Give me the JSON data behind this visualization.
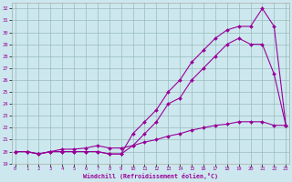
{
  "xlabel": "Windchill (Refroidissement éolien,°C)",
  "x_values": [
    0,
    1,
    2,
    3,
    4,
    5,
    6,
    7,
    8,
    9,
    10,
    11,
    12,
    13,
    14,
    15,
    16,
    17,
    18,
    19,
    20,
    21,
    22,
    23
  ],
  "line1": [
    20,
    20,
    19.8,
    20,
    20,
    20,
    20,
    20,
    19.8,
    19.8,
    21.5,
    22.5,
    23.5,
    25.0,
    26.0,
    27.5,
    28.5,
    29.5,
    30.2,
    30.5,
    30.5,
    32.0,
    30.5,
    22.2
  ],
  "line2": [
    20,
    20,
    19.8,
    20,
    20,
    20,
    20,
    20,
    19.8,
    19.8,
    20.5,
    21.5,
    22.5,
    24.0,
    24.5,
    26.0,
    27.0,
    28.0,
    29.0,
    29.5,
    29.0,
    29.0,
    26.5,
    22.2
  ],
  "line3": [
    20,
    20,
    19.8,
    20,
    20.2,
    20.2,
    20.3,
    20.5,
    20.3,
    20.3,
    20.5,
    20.8,
    21.0,
    21.3,
    21.5,
    21.8,
    22.0,
    22.2,
    22.3,
    22.5,
    22.5,
    22.5,
    22.2,
    22.2
  ],
  "bg_color": "#cce8ee",
  "line_color": "#990099",
  "grid_color": "#99bbbb",
  "ylim": [
    19,
    32.5
  ],
  "yticks": [
    19,
    20,
    21,
    22,
    23,
    24,
    25,
    26,
    27,
    28,
    29,
    30,
    31,
    32
  ],
  "xlim": [
    -0.3,
    23.3
  ],
  "xticks": [
    0,
    1,
    2,
    3,
    4,
    5,
    6,
    7,
    8,
    9,
    10,
    11,
    12,
    13,
    14,
    15,
    16,
    17,
    18,
    19,
    20,
    21,
    22,
    23
  ]
}
